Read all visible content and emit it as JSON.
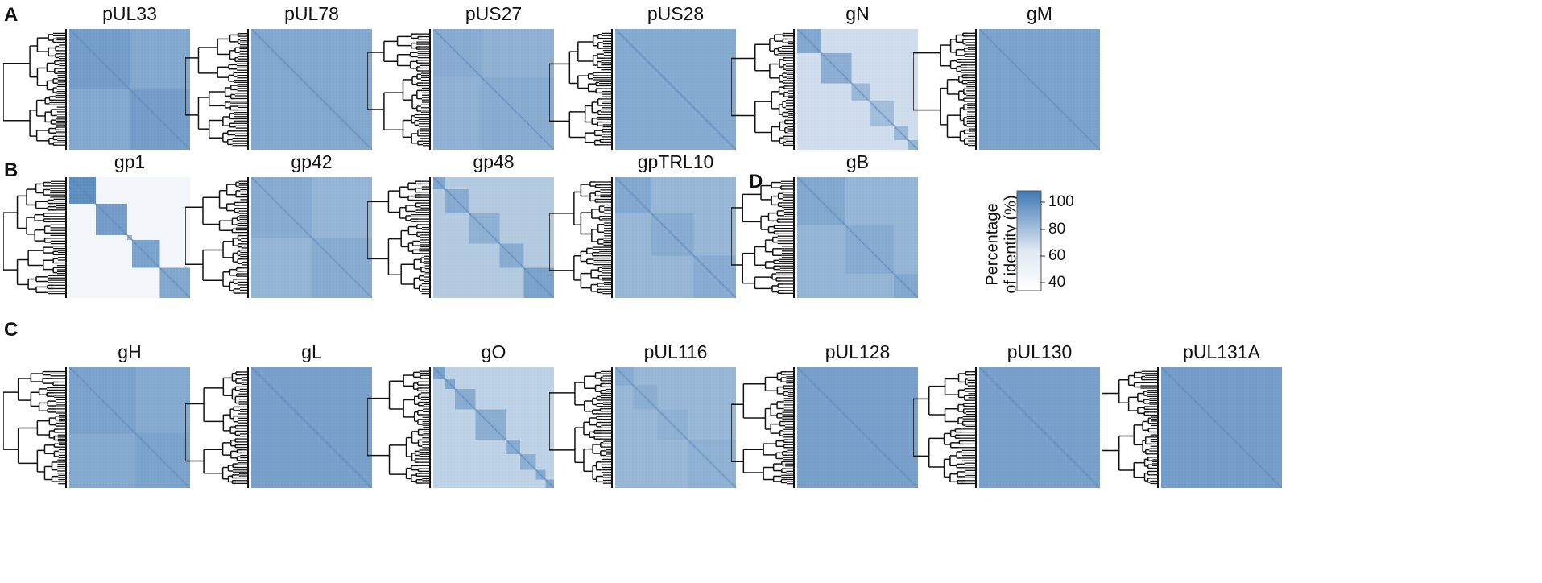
{
  "panel_labels": [
    "A",
    "B",
    "C",
    "D"
  ],
  "colorscale": {
    "low_color": "#ffffff",
    "high_color": "#3f78b4",
    "base_color": "#86a9d3"
  },
  "legend": {
    "title_line1": "Percentage",
    "title_line2": "of identity (%)",
    "ticks": [
      "100",
      "80",
      "60",
      "40"
    ],
    "range": [
      35,
      105
    ]
  },
  "chart_data": [
    {
      "type": "heatmap",
      "panel": "A",
      "title": "pUL33",
      "blocks": [
        [
          0.0,
          0.5,
          92
        ],
        [
          0.5,
          1.0,
          92
        ]
      ],
      "background_identity": 88
    },
    {
      "type": "heatmap",
      "panel": "A",
      "title": "pUL78",
      "blocks": [],
      "background_identity": 88
    },
    {
      "type": "heatmap",
      "panel": "A",
      "title": "pUS27",
      "blocks": [
        [
          0.0,
          0.4,
          86
        ],
        [
          0.4,
          1.0,
          86
        ]
      ],
      "background_identity": 84
    },
    {
      "type": "heatmap",
      "panel": "A",
      "title": "pUS28",
      "blocks": [],
      "background_identity": 87
    },
    {
      "type": "heatmap",
      "panel": "A",
      "title": "gN",
      "blocks": [
        [
          0.0,
          0.2,
          88
        ],
        [
          0.2,
          0.45,
          85
        ],
        [
          0.45,
          0.6,
          80
        ],
        [
          0.6,
          0.8,
          78
        ],
        [
          0.8,
          0.92,
          80
        ],
        [
          0.92,
          1.0,
          82
        ]
      ],
      "background_identity": 62
    },
    {
      "type": "heatmap",
      "panel": "A",
      "title": "gM",
      "blocks": [],
      "background_identity": 90
    },
    {
      "type": "heatmap",
      "panel": "B",
      "title": "gp1",
      "blocks": [
        [
          0.0,
          0.22,
          98
        ],
        [
          0.22,
          0.48,
          92
        ],
        [
          0.48,
          0.52,
          80
        ],
        [
          0.52,
          0.75,
          90
        ],
        [
          0.75,
          1.0,
          88
        ]
      ],
      "background_identity": 45
    },
    {
      "type": "heatmap",
      "panel": "B",
      "title": "gp42",
      "blocks": [
        [
          0.0,
          0.5,
          86
        ],
        [
          0.5,
          1.0,
          86
        ]
      ],
      "background_identity": 82
    },
    {
      "type": "heatmap",
      "panel": "B",
      "title": "gp48",
      "blocks": [
        [
          0.0,
          0.1,
          88
        ],
        [
          0.1,
          0.3,
          86
        ],
        [
          0.3,
          0.55,
          84
        ],
        [
          0.55,
          0.75,
          86
        ],
        [
          0.75,
          1.0,
          90
        ]
      ],
      "background_identity": 72
    },
    {
      "type": "heatmap",
      "panel": "B",
      "title": "gpTRL10",
      "blocks": [
        [
          0.0,
          0.3,
          88
        ],
        [
          0.3,
          0.65,
          86
        ],
        [
          0.65,
          1.0,
          86
        ]
      ],
      "background_identity": 81
    },
    {
      "type": "heatmap",
      "panel": "D",
      "title": "gB",
      "blocks": [
        [
          0.0,
          0.4,
          88
        ],
        [
          0.4,
          0.8,
          86
        ],
        [
          0.8,
          1.0,
          88
        ]
      ],
      "background_identity": 82
    },
    {
      "type": "heatmap",
      "panel": "C",
      "title": "gH",
      "blocks": [
        [
          0.0,
          0.55,
          90
        ],
        [
          0.55,
          1.0,
          90
        ]
      ],
      "background_identity": 87
    },
    {
      "type": "heatmap",
      "panel": "C",
      "title": "gL",
      "blocks": [],
      "background_identity": 91
    },
    {
      "type": "heatmap",
      "panel": "C",
      "title": "gO",
      "blocks": [
        [
          0.0,
          0.1,
          90
        ],
        [
          0.1,
          0.18,
          88
        ],
        [
          0.18,
          0.35,
          86
        ],
        [
          0.35,
          0.6,
          85
        ],
        [
          0.6,
          0.72,
          86
        ],
        [
          0.72,
          0.85,
          84
        ],
        [
          0.85,
          0.93,
          86
        ],
        [
          0.93,
          1.0,
          88
        ]
      ],
      "background_identity": 68
    },
    {
      "type": "heatmap",
      "panel": "C",
      "title": "pUL116",
      "blocks": [
        [
          0.0,
          0.15,
          86
        ],
        [
          0.15,
          0.35,
          85
        ],
        [
          0.35,
          0.6,
          84
        ],
        [
          0.6,
          1.0,
          84
        ]
      ],
      "background_identity": 81
    },
    {
      "type": "heatmap",
      "panel": "C",
      "title": "pUL128",
      "blocks": [],
      "background_identity": 91
    },
    {
      "type": "heatmap",
      "panel": "C",
      "title": "pUL130",
      "blocks": [],
      "background_identity": 91
    },
    {
      "type": "heatmap",
      "panel": "C",
      "title": "pUL131A",
      "blocks": [],
      "background_identity": 92
    }
  ]
}
